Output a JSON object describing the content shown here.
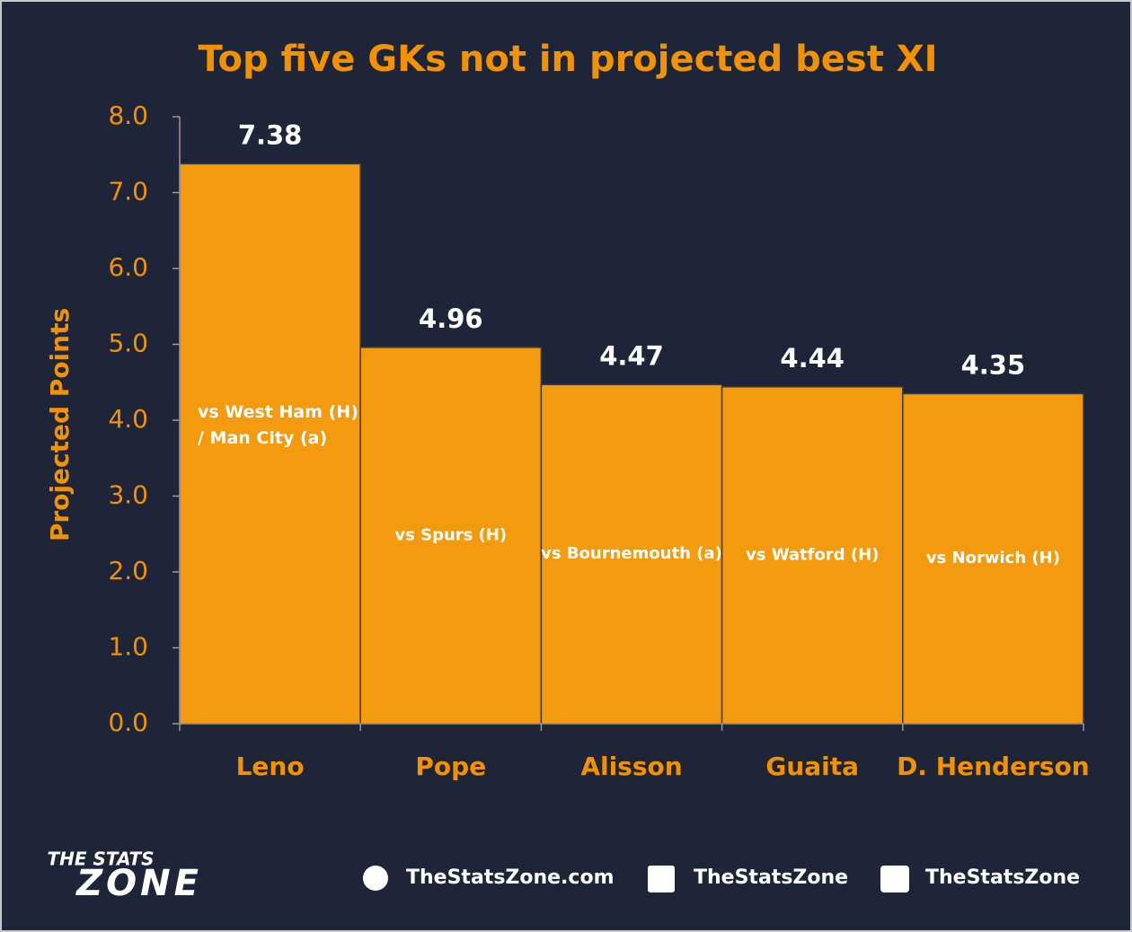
{
  "chart_data": {
    "type": "bar",
    "title": "Top five GKs not in projected best XI",
    "y_label": "Projected Points",
    "categories": [
      "Leno",
      "Pope",
      "Alisson",
      "Guaita",
      "D. Henderson"
    ],
    "values": [
      7.38,
      4.96,
      4.47,
      4.44,
      4.35
    ],
    "annotations": [
      [
        "vs West Ham (H)",
        "/ Man City (a)"
      ],
      [
        "vs Spurs (H)"
      ],
      [
        "vs Bournemouth (a)"
      ],
      [
        "vs Watford (H)"
      ],
      [
        "vs Norwich (H)"
      ]
    ],
    "color": "#f39a0f",
    "ylim": [
      0,
      8
    ],
    "yticks": [
      {
        "value": 0,
        "label": "0.0"
      },
      {
        "value": 1,
        "label": "1.0"
      },
      {
        "value": 2,
        "label": "2.0"
      },
      {
        "value": 3,
        "label": "3.0"
      },
      {
        "value": 4,
        "label": "4.0"
      },
      {
        "value": 5,
        "label": "5.0"
      },
      {
        "value": 6,
        "label": "6.0"
      },
      {
        "value": 7,
        "label": "7.0"
      },
      {
        "value": 8,
        "label": "8.0"
      }
    ],
    "grid": false
  },
  "footer": {
    "logo_top": "THE STATS",
    "logo_bottom": "ZONE",
    "website": "TheStatsZone.com",
    "facebook": "TheStatsZone",
    "twitter": "TheStatsZone"
  }
}
